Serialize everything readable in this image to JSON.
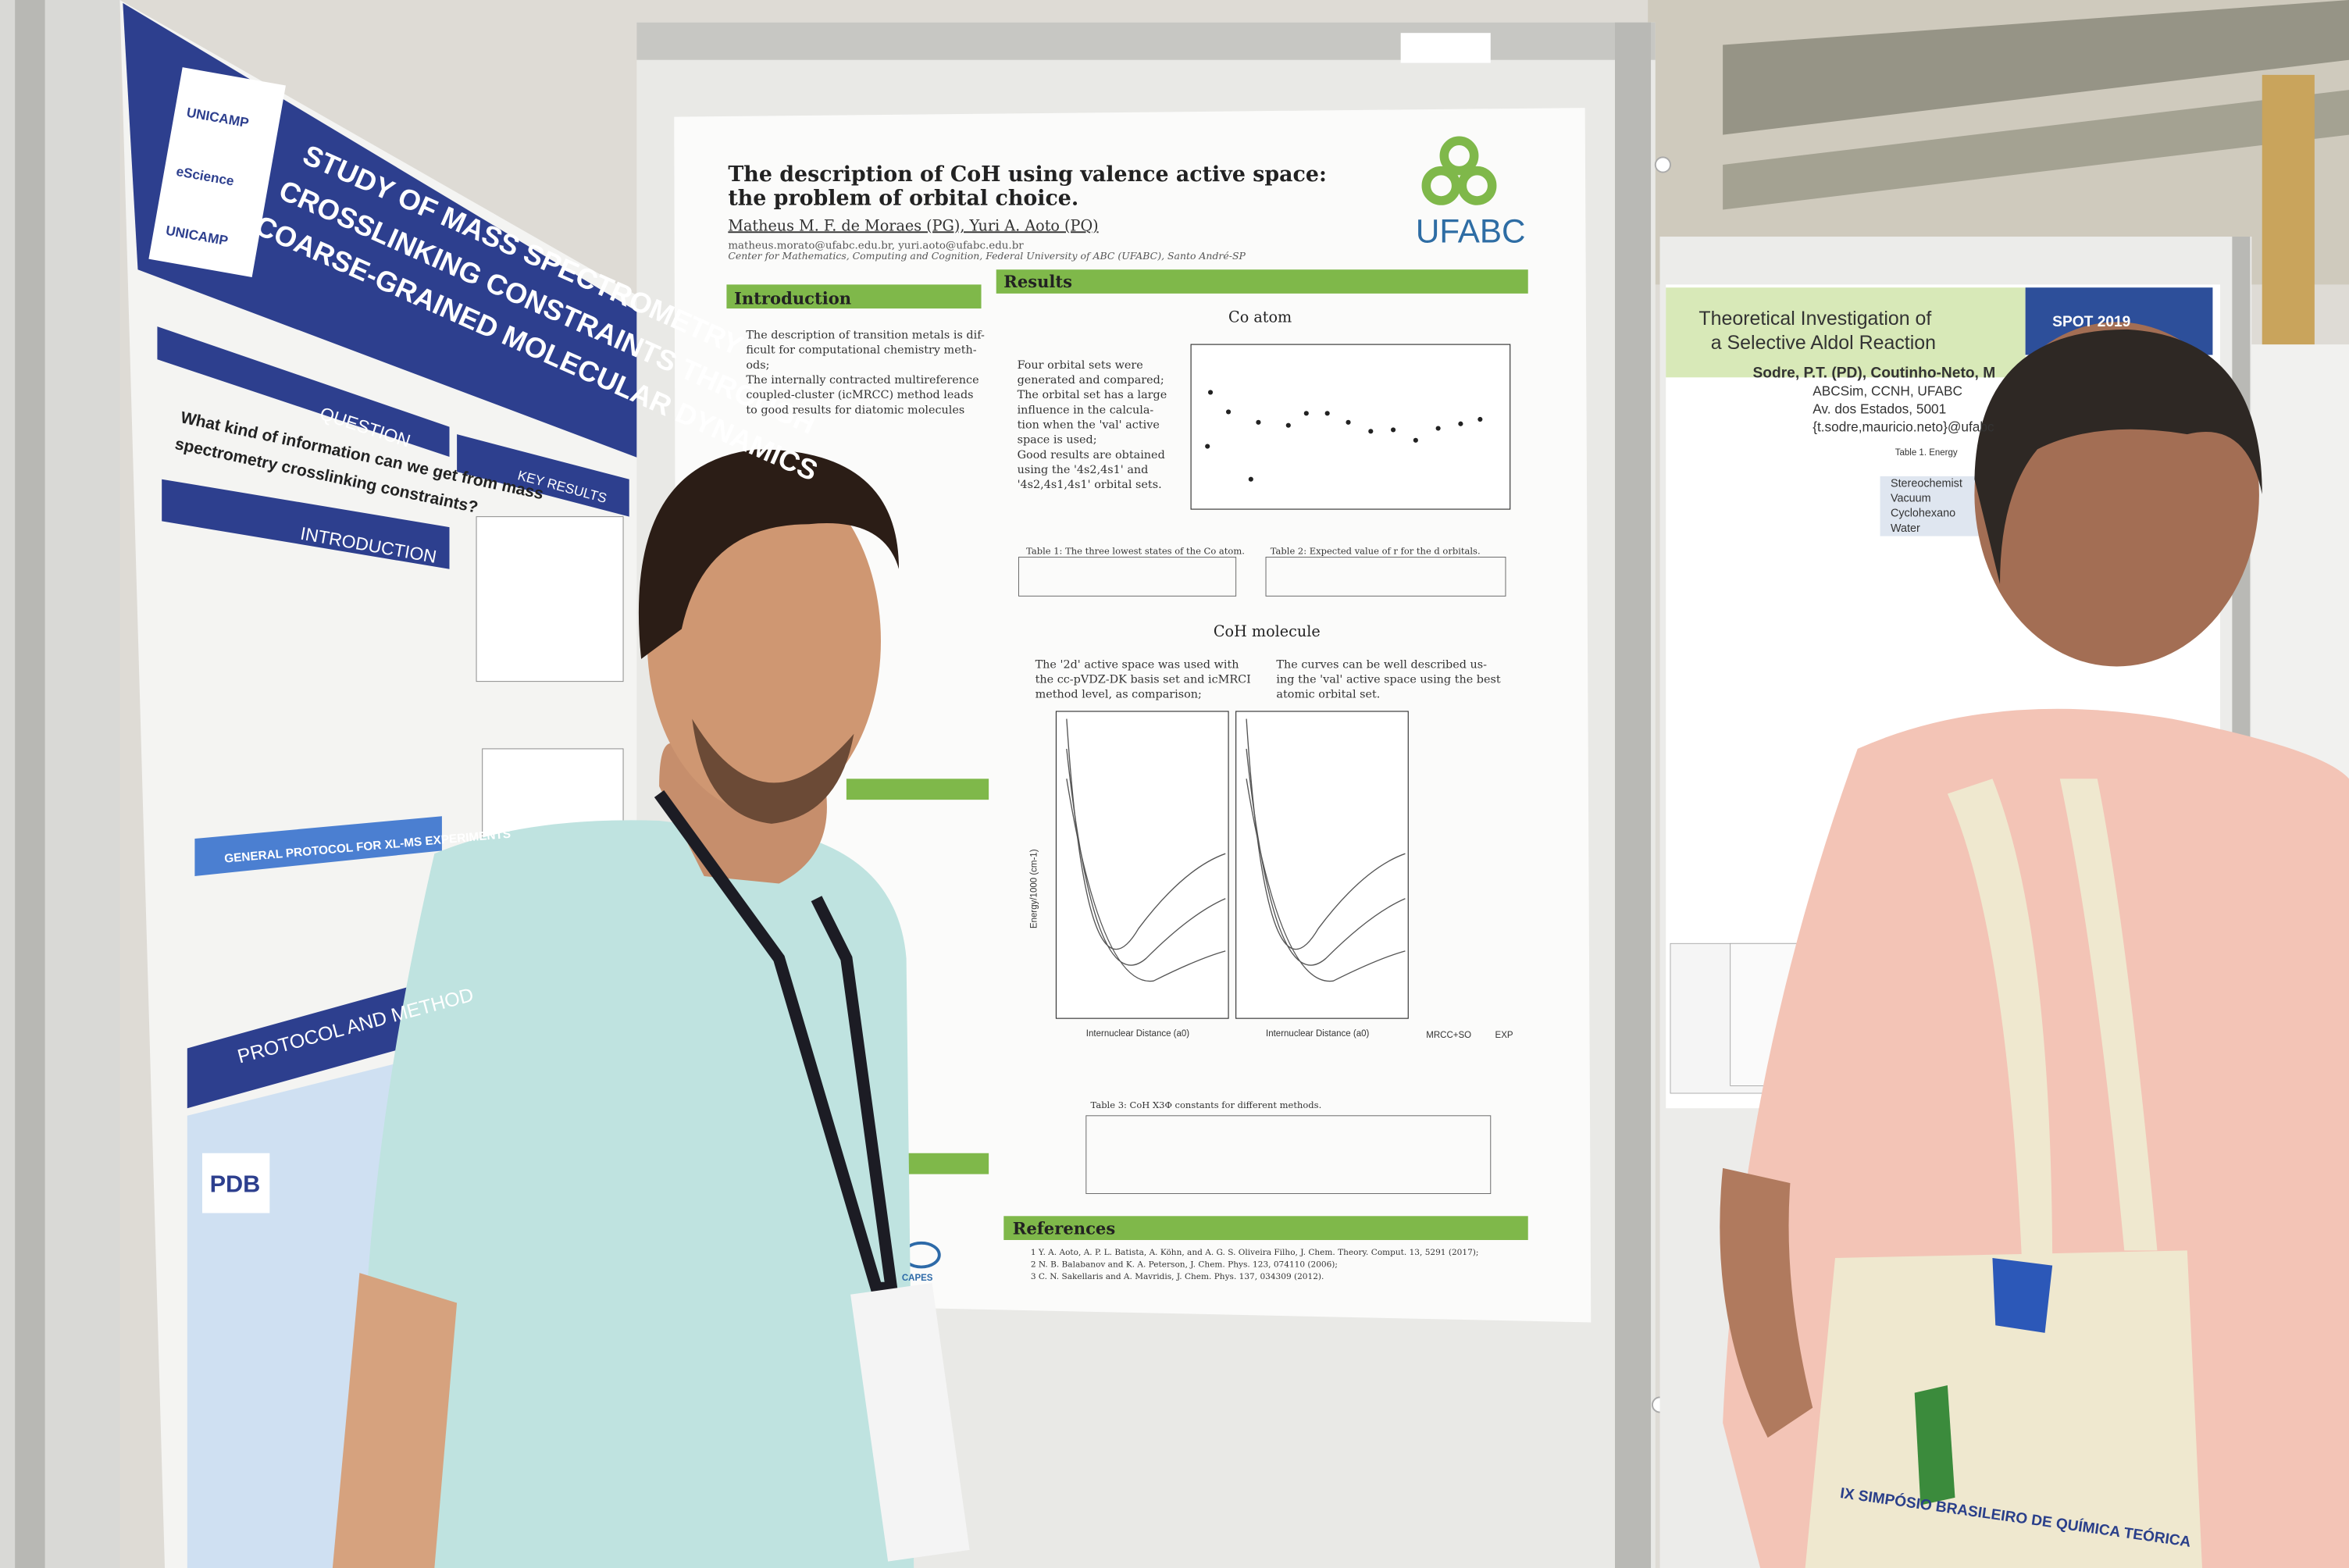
{
  "left_poster": {
    "title_lines": [
      "STUDY OF MASS SPECTROMETRY",
      "CROSSLINKING CONSTRAINTS THROUGH",
      "COARSE-GRAINED MOLECULAR DYNAMICS"
    ],
    "logos": [
      "UNICAMP",
      "eScience",
      "UNICAMP"
    ],
    "question_heading": "QUESTION",
    "question_lines": [
      "What kind of information can we get from mass",
      "spectrometry crosslinking constraints?"
    ],
    "introduction_heading": "INTRODUCTION",
    "key_results_heading": "KEY RESULTS",
    "protocol_banner": "GENERAL PROTOCOL FOR XL-MS EXPERIMENTS",
    "method_heading": "PROTOCOL AND METHOD",
    "pdb": "PDB"
  },
  "center_poster": {
    "title_lines": [
      "The description of CoH using valence active space:",
      "the problem of orbital choice."
    ],
    "authors": "Matheus M. F. de Moraes (PG), Yuri A. Aoto (PQ)",
    "emails": "matheus.morato@ufabc.edu.br, yuri.aoto@ufabc.edu.br",
    "affiliation": "Center for Mathematics, Computing and Cognition, Federal University of ABC (UFABC), Santo André-SP",
    "logo": "UFABC",
    "introduction": "Introduction",
    "intro_lines": [
      "The description of transition metals is dif-",
      "ficult for computational chemistry meth-",
      "ods;",
      "The internally contracted multireference",
      "coupled-cluster (icMRCC) method leads",
      "to good results for diatomic molecules"
    ],
    "results": "Results",
    "co_atom": "Co atom",
    "co_lines": [
      "Four orbital sets were",
      "generated and compared;",
      "The orbital set has a large",
      "influence in the calcula-",
      "tion when the 'val' active",
      "space is used;",
      "Good results are obtained",
      "using the '4s2,4s1' and",
      "'4s2,4s1,4s1' orbital sets."
    ],
    "table1_caption": "Table 1: The three lowest states of the Co atom.",
    "table2_caption": "Table 2: Expected value of r for the d orbitals.",
    "coh_molecule": "CoH molecule",
    "coh_left_lines": [
      "The '2d' active space was used with",
      "the cc-pVDZ-DK basis set and icMRCI",
      "method level, as comparison;"
    ],
    "coh_right_lines": [
      "The curves can be well described us-",
      "ing the 'val' active space using the best",
      "atomic orbital set."
    ],
    "x_axis": "Internuclear Distance (a0)",
    "y_axis": "Energy/1000 (cm-1)",
    "exp_labels": [
      "MRCC+SO",
      "EXP"
    ],
    "table3_caption": "Table 3: CoH X3Φ constants for different methods.",
    "references": "References",
    "reference_lines": [
      "1 Y. A. Aoto, A. P. L. Batista, A. Köhn, and A. G. S. Oliveira Filho, J. Chem. Theory. Comput. 13, 5291 (2017);",
      "2 N. B. Balabanov and K. A. Peterson, J. Chem. Phys. 123, 074110 (2006);",
      "3 C. N. Sakellaris and A. Mavridis, J. Chem. Phys. 137, 034309 (2012)."
    ],
    "capes": "CAPES"
  },
  "right_poster": {
    "title_lines": [
      "Theoretical Investigation of",
      "a Selective Aldol Reaction"
    ],
    "authors": "Sodre, P.T. (PD), Coutinho-Neto, M",
    "affiliation_lines": [
      "ABCSim, CCNH, UFABC",
      "Av. dos Estados, 5001",
      "{t.sodre,mauricio.neto}@ufabc"
    ],
    "badge": "SPOT 2019",
    "table_caption": "Table 1. Energy",
    "solvents": [
      "Stereochemist",
      "Vacuum",
      "Cyclohexano",
      "Water"
    ]
  },
  "bag_text": "IX SIMPÓSIO BRASILEIRO DE QUÍMICA TEÓRICA"
}
